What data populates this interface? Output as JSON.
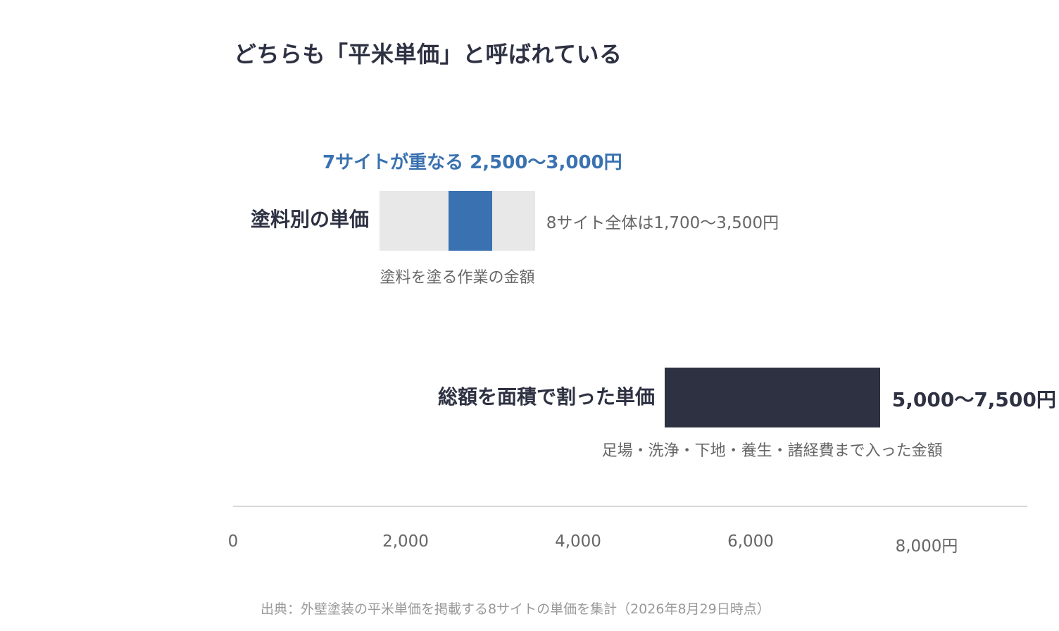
{
  "chart_data": {
    "type": "bar",
    "title": "どちらも「平米単価」と呼ばれている",
    "x_unit": "円",
    "xlim": [
      0,
      9200
    ],
    "x_ticks": [
      {
        "value": 0,
        "label": "0"
      },
      {
        "value": 2000,
        "label": "2,000"
      },
      {
        "value": 4000,
        "label": "4,000"
      },
      {
        "value": 6000,
        "label": "6,000"
      },
      {
        "value": 8000,
        "label": "8,000円"
      }
    ],
    "rows": [
      {
        "label": "塗料別の単価",
        "range": [
          1700,
          3500
        ],
        "range_text": "8サイト全体は1,700〜3,500円",
        "highlight": [
          2500,
          3000
        ],
        "highlight_text": "7サイトが重なる 2,500〜3,000円",
        "note": "塗料を塗る作業の金額",
        "color": "#e8e8e8",
        "highlight_color": "#3a72b1"
      },
      {
        "label": "総額を面積で割った単価",
        "range": [
          5000,
          7500
        ],
        "range_text": "5,000〜7,500円",
        "note": "足場・洗浄・下地・養生・諸経費まで入った金額",
        "color": "#2d3142"
      }
    ],
    "source": "出典：外壁塗装の平米単価を掲載する8サイトの単価を集計（2026年8月29日時点）"
  }
}
